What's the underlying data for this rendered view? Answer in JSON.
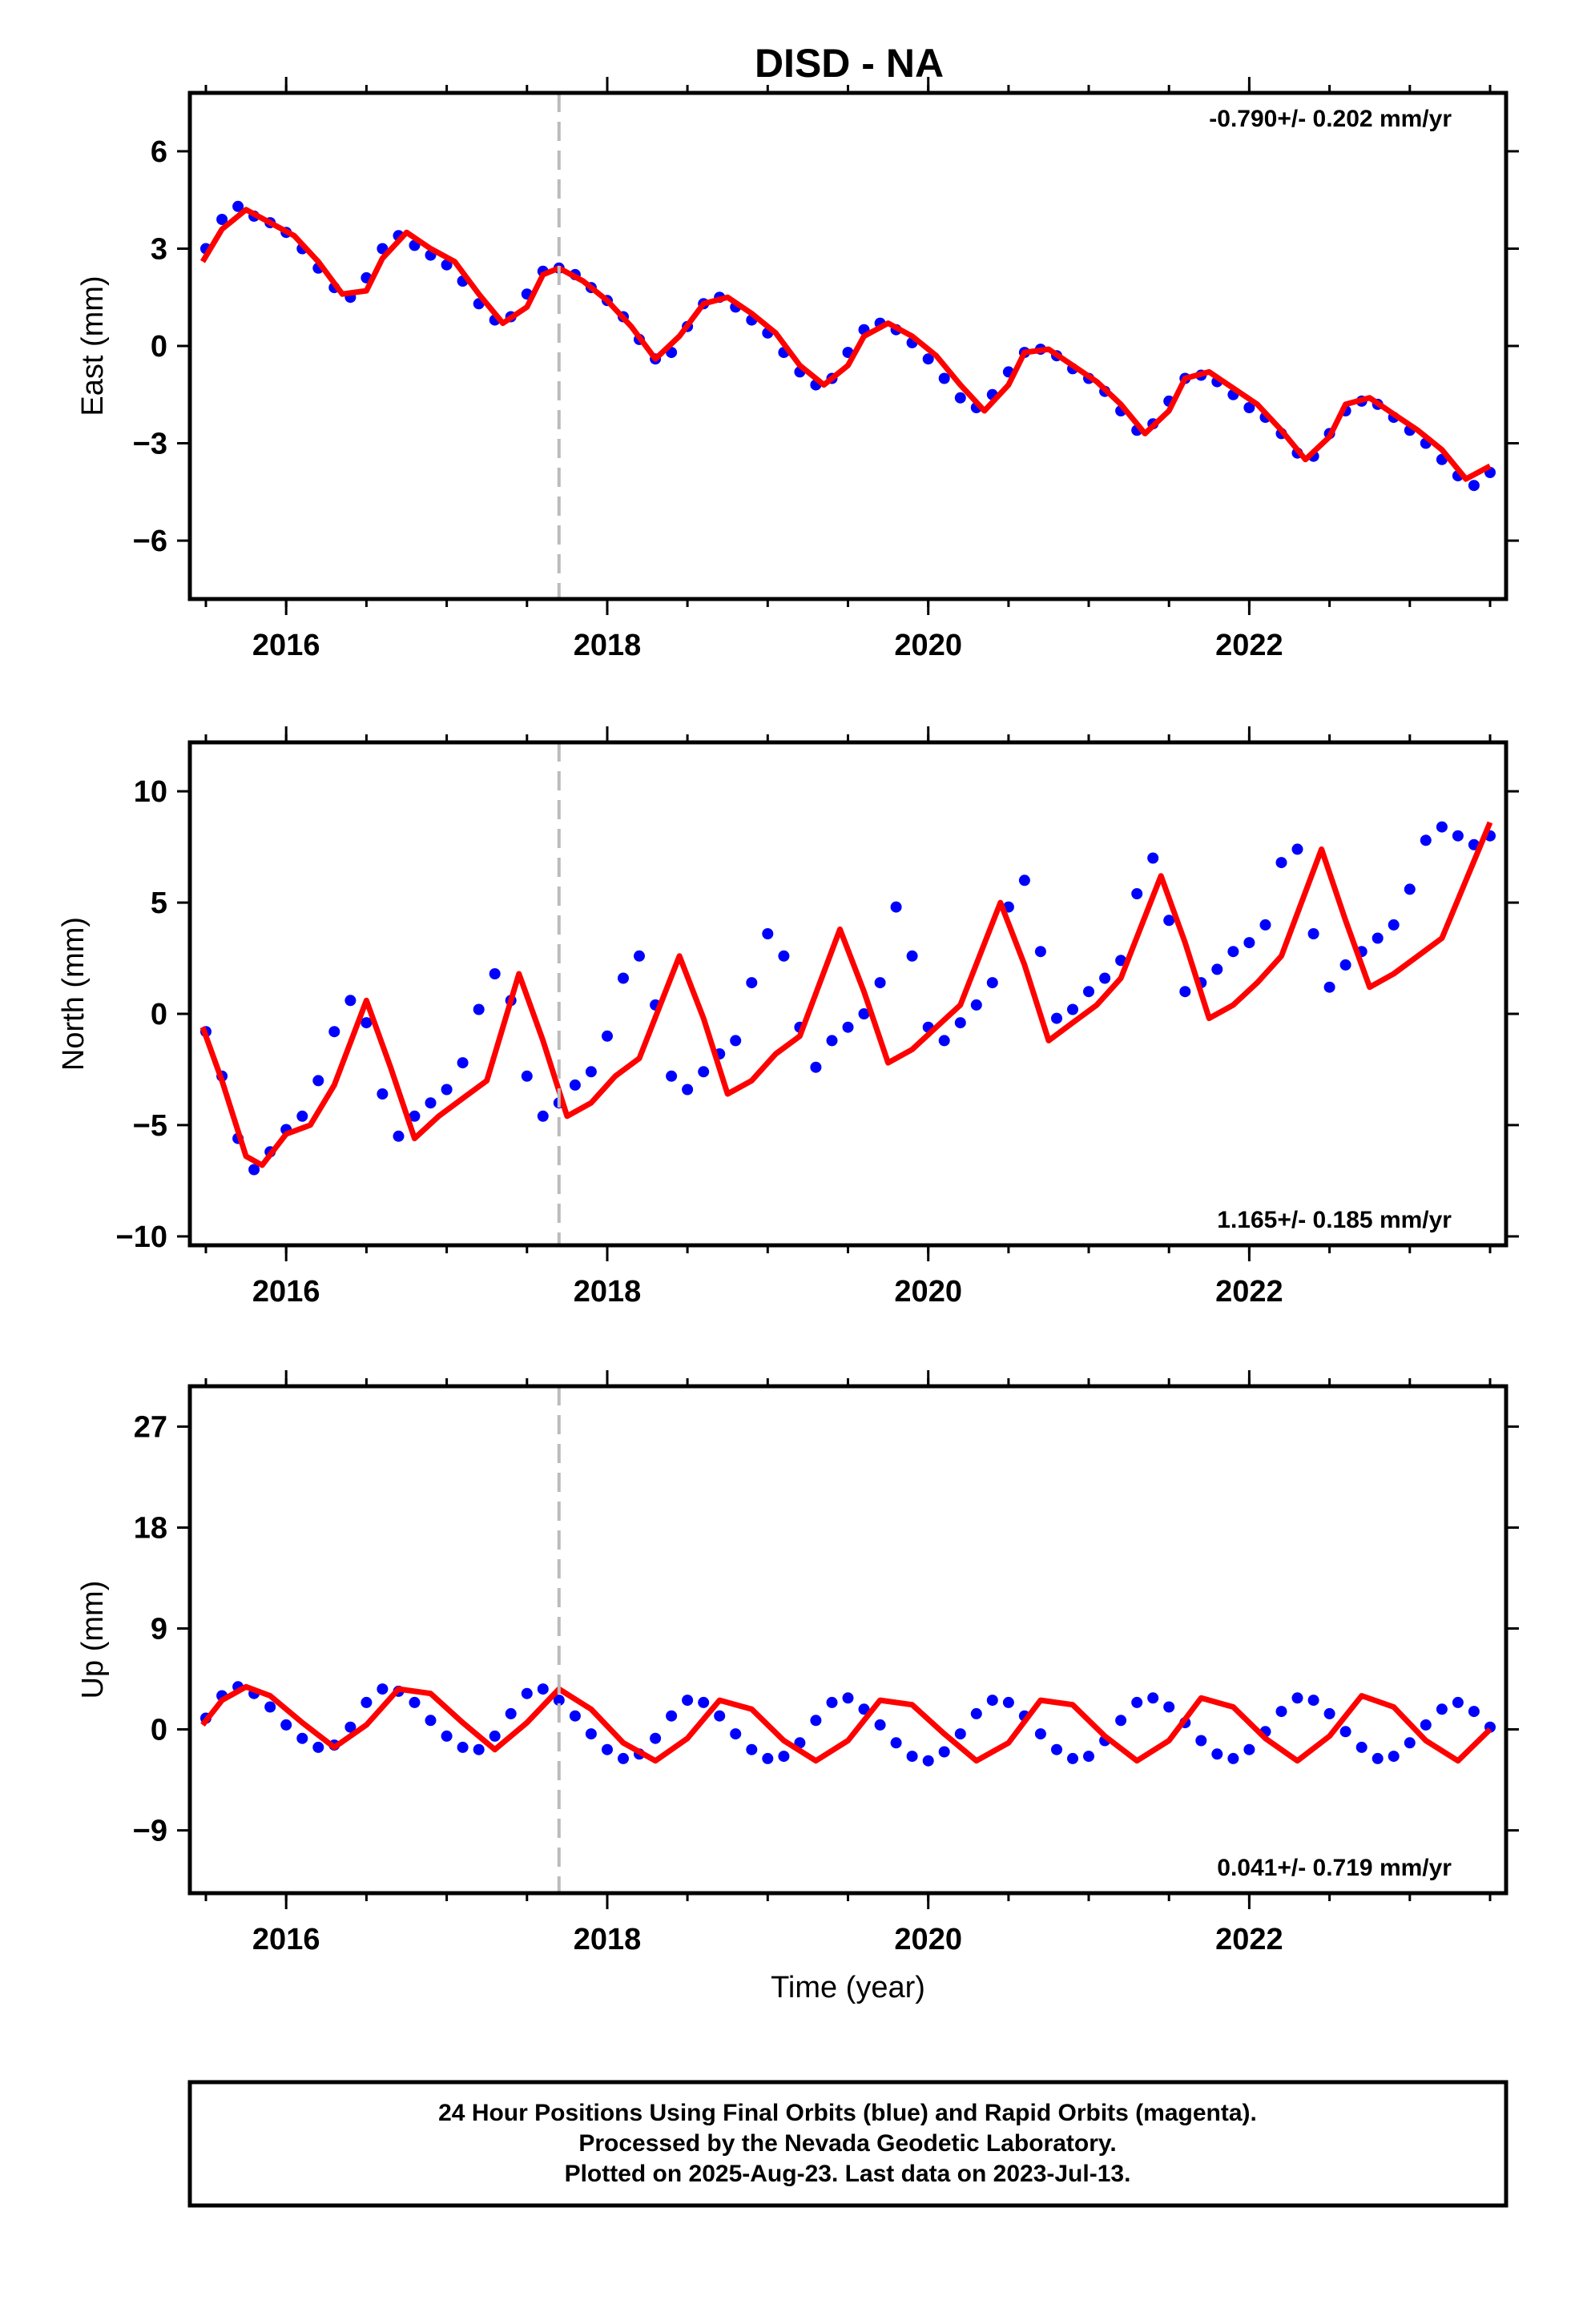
{
  "page": {
    "title": "DISD - NA"
  },
  "colors": {
    "points": "#0000ff",
    "fit": "#ff0000",
    "reference_line": "#bbbbbb",
    "frame": "#000000"
  },
  "chart_data": [
    {
      "type": "scatter",
      "title": "DISD - NA",
      "ylabel": "East (mm)",
      "xlabel": "",
      "xlim": [
        2015.4,
        2023.6
      ],
      "ylim": [
        -7.8,
        7.8
      ],
      "xticks": [
        2016,
        2018,
        2020,
        2022
      ],
      "xtick_labels": [
        "2016",
        "2018",
        "2020",
        "2022"
      ],
      "yticks": [
        6,
        3,
        0,
        -3,
        -6
      ],
      "ytick_labels": [
        "6",
        "3",
        "0",
        "−3",
        "−6"
      ],
      "annotation": "-0.790+/- 0.202 mm/yr",
      "annotation_position": "top-right",
      "reference_line_x": 2017.7,
      "series": [
        {
          "kind": "points",
          "x": [
            2015.5,
            2015.6,
            2015.7,
            2015.8,
            2015.9,
            2016.0,
            2016.1,
            2016.2,
            2016.3,
            2016.4,
            2016.5,
            2016.6,
            2016.7,
            2016.8,
            2016.9,
            2017.0,
            2017.1,
            2017.2,
            2017.3,
            2017.4,
            2017.5,
            2017.6,
            2017.7,
            2017.8,
            2017.9,
            2018.0,
            2018.1,
            2018.2,
            2018.3,
            2018.4,
            2018.5,
            2018.6,
            2018.7,
            2018.8,
            2018.9,
            2019.0,
            2019.1,
            2019.2,
            2019.3,
            2019.4,
            2019.5,
            2019.6,
            2019.7,
            2019.8,
            2019.9,
            2020.0,
            2020.1,
            2020.2,
            2020.3,
            2020.4,
            2020.5,
            2020.6,
            2020.7,
            2020.8,
            2020.9,
            2021.0,
            2021.1,
            2021.2,
            2021.3,
            2021.4,
            2021.5,
            2021.6,
            2021.7,
            2021.8,
            2021.9,
            2022.0,
            2022.1,
            2022.2,
            2022.3,
            2022.4,
            2022.5,
            2022.6,
            2022.7,
            2022.8,
            2022.9,
            2023.0,
            2023.1,
            2023.2,
            2023.3,
            2023.4,
            2023.5
          ],
          "y": [
            3.0,
            3.9,
            4.3,
            4.0,
            3.8,
            3.5,
            3.0,
            2.4,
            1.8,
            1.5,
            2.1,
            3.0,
            3.4,
            3.1,
            2.8,
            2.5,
            2.0,
            1.3,
            0.8,
            0.9,
            1.6,
            2.3,
            2.4,
            2.2,
            1.8,
            1.4,
            0.9,
            0.2,
            -0.4,
            -0.2,
            0.6,
            1.3,
            1.5,
            1.2,
            0.8,
            0.4,
            -0.2,
            -0.8,
            -1.2,
            -1.0,
            -0.2,
            0.5,
            0.7,
            0.5,
            0.1,
            -0.4,
            -1.0,
            -1.6,
            -1.9,
            -1.5,
            -0.8,
            -0.2,
            -0.1,
            -0.3,
            -0.7,
            -1.0,
            -1.4,
            -2.0,
            -2.6,
            -2.4,
            -1.7,
            -1.0,
            -0.9,
            -1.1,
            -1.5,
            -1.9,
            -2.2,
            -2.7,
            -3.3,
            -3.4,
            -2.7,
            -2.0,
            -1.7,
            -1.8,
            -2.2,
            -2.6,
            -3.0,
            -3.5,
            -4.0,
            -4.3,
            -3.9
          ]
        },
        {
          "kind": "fit",
          "x": [
            2015.48,
            2015.6,
            2015.75,
            2015.9,
            2016.05,
            2016.2,
            2016.35,
            2016.5,
            2016.6,
            2016.75,
            2016.9,
            2017.05,
            2017.2,
            2017.35,
            2017.5,
            2017.6,
            2017.7,
            2017.85,
            2018.0,
            2018.15,
            2018.3,
            2018.45,
            2018.6,
            2018.75,
            2018.9,
            2019.05,
            2019.2,
            2019.35,
            2019.5,
            2019.6,
            2019.75,
            2019.9,
            2020.05,
            2020.2,
            2020.35,
            2020.5,
            2020.6,
            2020.75,
            2020.9,
            2021.05,
            2021.2,
            2021.35,
            2021.5,
            2021.6,
            2021.75,
            2021.9,
            2022.05,
            2022.2,
            2022.35,
            2022.5,
            2022.6,
            2022.75,
            2022.9,
            2023.05,
            2023.2,
            2023.35,
            2023.5
          ],
          "y": [
            2.6,
            3.6,
            4.2,
            3.8,
            3.4,
            2.6,
            1.6,
            1.7,
            2.7,
            3.5,
            3.0,
            2.6,
            1.6,
            0.7,
            1.2,
            2.2,
            2.4,
            2.0,
            1.4,
            0.6,
            -0.4,
            0.3,
            1.3,
            1.5,
            1.0,
            0.4,
            -0.6,
            -1.2,
            -0.6,
            0.3,
            0.7,
            0.3,
            -0.3,
            -1.2,
            -2.0,
            -1.2,
            -0.2,
            -0.1,
            -0.6,
            -1.1,
            -1.8,
            -2.7,
            -2.0,
            -1.0,
            -0.8,
            -1.3,
            -1.8,
            -2.6,
            -3.5,
            -2.8,
            -1.8,
            -1.6,
            -2.1,
            -2.6,
            -3.2,
            -4.1,
            -3.7
          ]
        }
      ]
    },
    {
      "type": "scatter",
      "ylabel": "North (mm)",
      "xlabel": "",
      "xlim": [
        2015.4,
        2023.6
      ],
      "ylim": [
        -10.4,
        12.2
      ],
      "xticks": [
        2016,
        2018,
        2020,
        2022
      ],
      "xtick_labels": [
        "2016",
        "2018",
        "2020",
        "2022"
      ],
      "yticks": [
        10,
        5,
        0,
        -5,
        -10
      ],
      "ytick_labels": [
        "10",
        "5",
        "0",
        "−5",
        "−10"
      ],
      "annotation": "1.165+/- 0.185 mm/yr",
      "annotation_position": "bottom-right",
      "reference_line_x": 2017.7,
      "series": [
        {
          "kind": "points",
          "x": [
            2015.5,
            2015.6,
            2015.7,
            2015.8,
            2015.9,
            2016.0,
            2016.1,
            2016.2,
            2016.3,
            2016.4,
            2016.5,
            2016.6,
            2016.7,
            2016.8,
            2016.9,
            2017.0,
            2017.1,
            2017.2,
            2017.3,
            2017.4,
            2017.5,
            2017.6,
            2017.7,
            2017.8,
            2017.9,
            2018.0,
            2018.1,
            2018.2,
            2018.3,
            2018.4,
            2018.5,
            2018.6,
            2018.7,
            2018.8,
            2018.9,
            2019.0,
            2019.1,
            2019.2,
            2019.3,
            2019.4,
            2019.5,
            2019.6,
            2019.7,
            2019.8,
            2019.9,
            2020.0,
            2020.1,
            2020.2,
            2020.3,
            2020.4,
            2020.5,
            2020.6,
            2020.7,
            2020.8,
            2020.9,
            2021.0,
            2021.1,
            2021.2,
            2021.3,
            2021.4,
            2021.5,
            2021.6,
            2021.7,
            2021.8,
            2021.9,
            2022.0,
            2022.1,
            2022.2,
            2022.3,
            2022.4,
            2022.5,
            2022.6,
            2022.7,
            2022.8,
            2022.9,
            2023.0,
            2023.1,
            2023.2,
            2023.3,
            2023.4,
            2023.5
          ],
          "y": [
            -0.8,
            -2.8,
            -5.6,
            -7.0,
            -6.2,
            -5.2,
            -4.6,
            -3.0,
            -0.8,
            0.6,
            -0.4,
            -3.6,
            -5.5,
            -4.6,
            -4.0,
            -3.4,
            -2.2,
            0.2,
            1.8,
            0.6,
            -2.8,
            -4.6,
            -4.0,
            -3.2,
            -2.6,
            -1.0,
            1.6,
            2.6,
            0.4,
            -2.8,
            -3.4,
            -2.6,
            -1.8,
            -1.2,
            1.4,
            3.6,
            2.6,
            -0.6,
            -2.4,
            -1.2,
            -0.6,
            0.0,
            1.4,
            4.8,
            2.6,
            -0.6,
            -1.2,
            -0.4,
            0.4,
            1.4,
            4.8,
            6.0,
            2.8,
            -0.2,
            0.2,
            1.0,
            1.6,
            2.4,
            5.4,
            7.0,
            4.2,
            1.0,
            1.4,
            2.0,
            2.8,
            3.2,
            4.0,
            6.8,
            7.4,
            3.6,
            1.2,
            2.2,
            2.8,
            3.4,
            4.0,
            5.6,
            7.8,
            8.4,
            8.0,
            7.6,
            8.0
          ]
        },
        {
          "kind": "fit",
          "x": [
            2015.48,
            2015.6,
            2015.75,
            2015.85,
            2016.0,
            2016.15,
            2016.3,
            2016.5,
            2016.65,
            2016.8,
            2016.95,
            2017.1,
            2017.25,
            2017.45,
            2017.6,
            2017.75,
            2017.9,
            2018.05,
            2018.2,
            2018.45,
            2018.6,
            2018.75,
            2018.9,
            2019.05,
            2019.2,
            2019.45,
            2019.6,
            2019.75,
            2019.9,
            2020.05,
            2020.2,
            2020.45,
            2020.6,
            2020.75,
            2020.9,
            2021.05,
            2021.2,
            2021.45,
            2021.6,
            2021.75,
            2021.9,
            2022.05,
            2022.2,
            2022.45,
            2022.6,
            2022.75,
            2022.9,
            2023.05,
            2023.2,
            2023.5
          ],
          "y": [
            -0.6,
            -3.0,
            -6.4,
            -6.8,
            -5.4,
            -5.0,
            -3.2,
            0.6,
            -2.4,
            -5.6,
            -4.6,
            -3.8,
            -3.0,
            1.8,
            -1.2,
            -4.6,
            -4.0,
            -2.8,
            -2.0,
            2.6,
            -0.2,
            -3.6,
            -3.0,
            -1.8,
            -1.0,
            3.8,
            1.0,
            -2.2,
            -1.6,
            -0.6,
            0.4,
            5.0,
            2.2,
            -1.2,
            -0.4,
            0.4,
            1.6,
            6.2,
            3.2,
            -0.2,
            0.4,
            1.4,
            2.6,
            7.4,
            4.2,
            1.2,
            1.8,
            2.6,
            3.4,
            8.6
          ]
        }
      ]
    },
    {
      "type": "scatter",
      "ylabel": "Up (mm)",
      "xlabel": "Time (year)",
      "xlim": [
        2015.4,
        2023.6
      ],
      "ylim": [
        -14.6,
        30.6
      ],
      "xticks": [
        2016,
        2018,
        2020,
        2022
      ],
      "xtick_labels": [
        "2016",
        "2018",
        "2020",
        "2022"
      ],
      "yticks": [
        27,
        18,
        9,
        0,
        -9
      ],
      "ytick_labels": [
        "27",
        "18",
        "9",
        "0",
        "−9"
      ],
      "annotation": "0.041+/- 0.719 mm/yr",
      "annotation_position": "bottom-right",
      "reference_line_x": 2017.7,
      "series": [
        {
          "kind": "points",
          "x": [
            2015.5,
            2015.6,
            2015.7,
            2015.8,
            2015.9,
            2016.0,
            2016.1,
            2016.2,
            2016.3,
            2016.4,
            2016.5,
            2016.6,
            2016.7,
            2016.8,
            2016.9,
            2017.0,
            2017.1,
            2017.2,
            2017.3,
            2017.4,
            2017.5,
            2017.6,
            2017.7,
            2017.8,
            2017.9,
            2018.0,
            2018.1,
            2018.2,
            2018.3,
            2018.4,
            2018.5,
            2018.6,
            2018.7,
            2018.8,
            2018.9,
            2019.0,
            2019.1,
            2019.2,
            2019.3,
            2019.4,
            2019.5,
            2019.6,
            2019.7,
            2019.8,
            2019.9,
            2020.0,
            2020.1,
            2020.2,
            2020.3,
            2020.4,
            2020.5,
            2020.6,
            2020.7,
            2020.8,
            2020.9,
            2021.0,
            2021.1,
            2021.2,
            2021.3,
            2021.4,
            2021.5,
            2021.6,
            2021.7,
            2021.8,
            2021.9,
            2022.0,
            2022.1,
            2022.2,
            2022.3,
            2022.4,
            2022.5,
            2022.6,
            2022.7,
            2022.8,
            2022.9,
            2023.0,
            2023.1,
            2023.2,
            2023.3,
            2023.4,
            2023.5
          ],
          "y": [
            1.0,
            3.0,
            3.8,
            3.2,
            2.0,
            0.4,
            -0.8,
            -1.6,
            -1.4,
            0.2,
            2.4,
            3.6,
            3.4,
            2.4,
            0.8,
            -0.6,
            -1.6,
            -1.8,
            -0.6,
            1.4,
            3.2,
            3.6,
            2.6,
            1.2,
            -0.4,
            -1.8,
            -2.6,
            -2.2,
            -0.8,
            1.2,
            2.6,
            2.4,
            1.2,
            -0.4,
            -1.8,
            -2.6,
            -2.4,
            -1.2,
            0.8,
            2.4,
            2.8,
            1.8,
            0.4,
            -1.2,
            -2.4,
            -2.8,
            -2.0,
            -0.4,
            1.4,
            2.6,
            2.4,
            1.2,
            -0.4,
            -1.8,
            -2.6,
            -2.4,
            -1.0,
            0.8,
            2.4,
            2.8,
            2.0,
            0.6,
            -1.0,
            -2.2,
            -2.6,
            -1.8,
            -0.2,
            1.6,
            2.8,
            2.6,
            1.4,
            -0.2,
            -1.6,
            -2.6,
            -2.4,
            -1.2,
            0.4,
            1.8,
            2.4,
            1.6,
            0.2
          ]
        },
        {
          "kind": "fit",
          "x": [
            2015.48,
            2015.6,
            2015.75,
            2015.9,
            2016.1,
            2016.3,
            2016.5,
            2016.7,
            2016.9,
            2017.1,
            2017.3,
            2017.5,
            2017.7,
            2017.9,
            2018.1,
            2018.3,
            2018.5,
            2018.7,
            2018.9,
            2019.1,
            2019.3,
            2019.5,
            2019.7,
            2019.9,
            2020.1,
            2020.3,
            2020.5,
            2020.7,
            2020.9,
            2021.1,
            2021.3,
            2021.5,
            2021.7,
            2021.9,
            2022.1,
            2022.3,
            2022.5,
            2022.7,
            2022.9,
            2023.1,
            2023.3,
            2023.5
          ],
          "y": [
            0.4,
            2.6,
            3.8,
            3.0,
            0.6,
            -1.6,
            0.4,
            3.6,
            3.2,
            0.6,
            -1.8,
            0.6,
            3.6,
            1.8,
            -1.2,
            -2.8,
            -0.8,
            2.6,
            1.8,
            -1.0,
            -2.8,
            -1.0,
            2.6,
            2.2,
            -0.4,
            -2.8,
            -1.2,
            2.6,
            2.2,
            -0.6,
            -2.8,
            -1.0,
            2.8,
            2.0,
            -0.8,
            -2.8,
            -0.6,
            3.0,
            2.0,
            -1.0,
            -2.8,
            0.0
          ]
        }
      ]
    }
  ],
  "footer": {
    "lines": [
      "24 Hour Positions Using Final Orbits (blue) and Rapid Orbits (magenta).",
      "Processed by the Nevada Geodetic Laboratory.",
      "Plotted on 2025-Aug-23. Last data on 2023-Jul-13."
    ]
  }
}
